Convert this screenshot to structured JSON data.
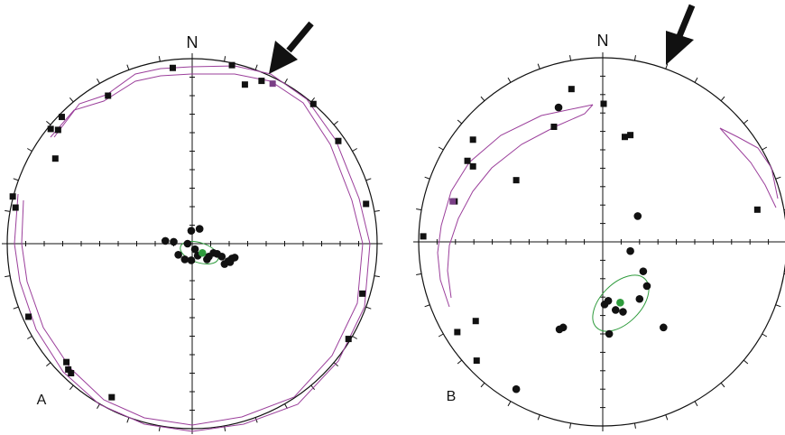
{
  "nets": [
    {
      "north_label": "N",
      "panel_label": "A",
      "colors": {
        "square": "#111111",
        "circle": "#111111",
        "highlight": "#7a3f86",
        "mean": "#2e9b3c",
        "girdle": "#9b3f9b"
      },
      "squares": [
        [
          -0.105,
          0.95
        ],
        [
          0.215,
          0.965
        ],
        [
          0.285,
          0.86
        ],
        [
          0.375,
          0.88
        ],
        [
          0.655,
          0.755
        ],
        [
          0.79,
          0.555
        ],
        [
          0.94,
          0.215
        ],
        [
          0.92,
          -0.27
        ],
        [
          0.845,
          -0.515
        ],
        [
          -0.455,
          0.8
        ],
        [
          -0.725,
          0.615
        ],
        [
          -0.765,
          0.62
        ],
        [
          -0.705,
          0.685
        ],
        [
          -0.74,
          0.46
        ],
        [
          -0.97,
          0.255
        ],
        [
          -0.955,
          0.195
        ],
        [
          -0.885,
          -0.395
        ],
        [
          -0.68,
          -0.64
        ],
        [
          -0.67,
          -0.68
        ],
        [
          -0.655,
          -0.7
        ],
        [
          -0.435,
          -0.83
        ]
      ],
      "highlight_squares": [
        [
          0.435,
          0.865
        ]
      ],
      "circles": [
        [
          -0.145,
          0.015
        ],
        [
          -0.1,
          0.01
        ],
        [
          -0.005,
          0.07
        ],
        [
          0.04,
          0.08
        ],
        [
          -0.025,
          0.0
        ],
        [
          0.015,
          -0.03
        ],
        [
          -0.075,
          -0.06
        ],
        [
          -0.04,
          -0.085
        ],
        [
          -0.005,
          -0.09
        ],
        [
          0.03,
          -0.065
        ],
        [
          0.08,
          -0.085
        ],
        [
          0.115,
          -0.05
        ],
        [
          0.135,
          -0.055
        ],
        [
          0.16,
          -0.07
        ],
        [
          0.195,
          -0.095
        ],
        [
          0.215,
          -0.08
        ],
        [
          0.23,
          -0.075
        ],
        [
          0.205,
          -0.1
        ],
        [
          0.175,
          -0.11
        ],
        [
          0.09,
          -0.07
        ]
      ],
      "mean": [
        0.055,
        -0.05
      ]
    },
    {
      "north_label": "N",
      "panel_label": "B",
      "colors": {
        "square": "#111111",
        "circle": "#111111",
        "highlight": "#7a3f86",
        "mean": "#2e9b3c",
        "girdle": "#9b3f9b"
      },
      "squares": [
        [
          -0.17,
          0.83
        ],
        [
          0.005,
          0.75
        ],
        [
          -0.265,
          0.625
        ],
        [
          -0.705,
          0.555
        ],
        [
          -0.735,
          0.44
        ],
        [
          -0.705,
          0.41
        ],
        [
          -0.47,
          0.335
        ],
        [
          -0.805,
          0.22
        ],
        [
          -0.975,
          0.03
        ],
        [
          0.12,
          0.57
        ],
        [
          0.15,
          0.58
        ],
        [
          0.84,
          0.175
        ],
        [
          -0.79,
          -0.49
        ],
        [
          -0.69,
          -0.43
        ],
        [
          -0.685,
          -0.645
        ]
      ],
      "highlight_squares": [
        [
          -0.815,
          0.22
        ]
      ],
      "circles": [
        [
          -0.24,
          0.73
        ],
        [
          0.19,
          0.14
        ],
        [
          0.15,
          -0.05
        ],
        [
          0.22,
          -0.16
        ],
        [
          0.24,
          -0.24
        ],
        [
          0.2,
          -0.31
        ],
        [
          0.03,
          -0.32
        ],
        [
          0.07,
          -0.37
        ],
        [
          0.11,
          -0.38
        ],
        [
          0.01,
          -0.34
        ],
        [
          -0.215,
          -0.465
        ],
        [
          -0.235,
          -0.475
        ],
        [
          0.33,
          -0.465
        ],
        [
          0.035,
          -0.5
        ],
        [
          -0.47,
          -0.8
        ]
      ],
      "mean": [
        0.095,
        -0.33
      ]
    }
  ]
}
